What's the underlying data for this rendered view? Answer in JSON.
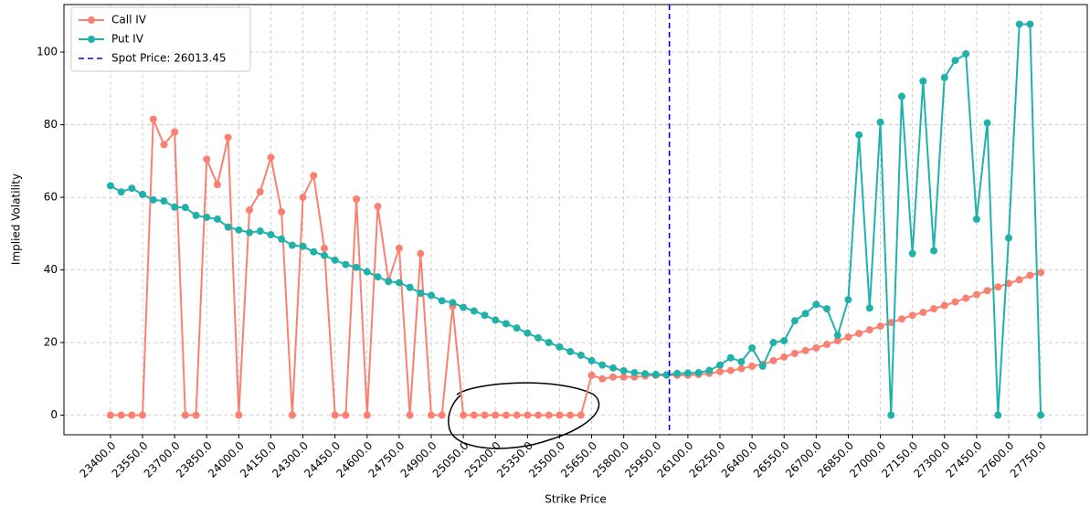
{
  "chart_data": {
    "type": "line",
    "x_label": "Strike Price",
    "y_label": "Implied Volatility",
    "x": [
      23400,
      23450,
      23500,
      23550,
      23600,
      23650,
      23700,
      23750,
      23800,
      23850,
      23900,
      23950,
      24000,
      24050,
      24100,
      24150,
      24200,
      24250,
      24300,
      24350,
      24400,
      24450,
      24500,
      24550,
      24600,
      24650,
      24700,
      24750,
      24800,
      24850,
      24900,
      24950,
      25000,
      25050,
      25100,
      25150,
      25200,
      25250,
      25300,
      25350,
      25400,
      25450,
      25500,
      25550,
      25600,
      25650,
      25700,
      25750,
      25800,
      25850,
      25900,
      25950,
      26000,
      26050,
      26100,
      26150,
      26200,
      26250,
      26300,
      26350,
      26400,
      26450,
      26500,
      26550,
      26600,
      26650,
      26700,
      26750,
      26800,
      26850,
      26900,
      26950,
      27000,
      27050,
      27100,
      27150,
      27200,
      27250,
      27300,
      27350,
      27400,
      27450,
      27500,
      27550,
      27600,
      27650,
      27700,
      27750
    ],
    "series": [
      {
        "name": "Call IV",
        "color": "#fa8072",
        "values": [
          0,
          0,
          0,
          0,
          81.5,
          74.5,
          78,
          0,
          0,
          70.5,
          63.5,
          76.5,
          0,
          56.5,
          61.5,
          71,
          56,
          0,
          60,
          66,
          46,
          0,
          0,
          59.5,
          0,
          57.5,
          37,
          46,
          0,
          44.5,
          0,
          0,
          30,
          0,
          0,
          0,
          0,
          0,
          0,
          0,
          0,
          0,
          0,
          0,
          0,
          11,
          10,
          10.5,
          10.5,
          10.5,
          10.8,
          11,
          11,
          11,
          11,
          11.2,
          11.5,
          12,
          12.3,
          12.8,
          13.5,
          14,
          15,
          16,
          17,
          17.8,
          18.5,
          19.5,
          20.5,
          21.5,
          22.5,
          23.5,
          24.5,
          25.5,
          26.5,
          27.5,
          28.3,
          29.3,
          30.2,
          31.2,
          32.2,
          33.2,
          34.3,
          35.3,
          36.3,
          37.3,
          38.5,
          39.3
        ]
      },
      {
        "name": "Put IV",
        "color": "#20b2aa",
        "values": [
          63.2,
          61.5,
          62.5,
          60.8,
          59.3,
          59,
          57.3,
          57.2,
          55,
          54.5,
          54,
          51.8,
          51,
          50.3,
          50.7,
          49.7,
          48.5,
          46.8,
          46.5,
          45,
          44,
          42.7,
          41.5,
          40.7,
          39.5,
          38.1,
          36.8,
          36.5,
          35.2,
          33.6,
          33,
          31.5,
          31,
          29.7,
          28.7,
          27.5,
          26.2,
          25.2,
          24,
          22.6,
          21.3,
          20,
          18.8,
          17.5,
          16.5,
          15,
          13.8,
          13,
          12.2,
          11.7,
          11.4,
          11.2,
          11.1,
          11.5,
          11.6,
          11.7,
          12.3,
          13.8,
          15.8,
          14.7,
          18.5,
          13.5,
          20,
          20.5,
          26,
          28,
          30.5,
          29.3,
          22,
          31.8,
          77.2,
          29.5,
          80.7,
          0,
          87.8,
          44.5,
          92,
          45.3,
          93,
          97.7,
          99.5,
          54,
          80.5,
          0,
          48.8,
          107.7,
          107.7,
          0
        ]
      }
    ],
    "spot": {
      "value": 26013.45,
      "label": "Spot Price: 26013.45",
      "color": "#0000ff"
    },
    "xlim": [
      23182.5,
      27967.5
    ],
    "ylim": [
      -5.4,
      113.1
    ],
    "xticks": [
      {
        "value": 23400,
        "label": "23400.0"
      },
      {
        "value": 23550,
        "label": "23550.0"
      },
      {
        "value": 23700,
        "label": "23700.0"
      },
      {
        "value": 23850,
        "label": "23850.0"
      },
      {
        "value": 24000,
        "label": "24000.0"
      },
      {
        "value": 24150,
        "label": "24150.0"
      },
      {
        "value": 24300,
        "label": "24300.0"
      },
      {
        "value": 24450,
        "label": "24450.0"
      },
      {
        "value": 24600,
        "label": "24600.0"
      },
      {
        "value": 24750,
        "label": "24750.0"
      },
      {
        "value": 24900,
        "label": "24900.0"
      },
      {
        "value": 25050,
        "label": "25050.0"
      },
      {
        "value": 25200,
        "label": "25200.0"
      },
      {
        "value": 25350,
        "label": "25350.0"
      },
      {
        "value": 25500,
        "label": "25500.0"
      },
      {
        "value": 25650,
        "label": "25650.0"
      },
      {
        "value": 25800,
        "label": "25800.0"
      },
      {
        "value": 25950,
        "label": "25950.0"
      },
      {
        "value": 26100,
        "label": "26100.0"
      },
      {
        "value": 26250,
        "label": "26250.0"
      },
      {
        "value": 26400,
        "label": "26400.0"
      },
      {
        "value": 26550,
        "label": "26550.0"
      },
      {
        "value": 26700,
        "label": "26700.0"
      },
      {
        "value": 26850,
        "label": "26850.0"
      },
      {
        "value": 27000,
        "label": "27000.0"
      },
      {
        "value": 27150,
        "label": "27150.0"
      },
      {
        "value": 27300,
        "label": "27300.0"
      },
      {
        "value": 27450,
        "label": "27450.0"
      },
      {
        "value": 27600,
        "label": "27600.0"
      },
      {
        "value": 27750,
        "label": "27750.0"
      }
    ],
    "yticks": [
      0,
      20,
      40,
      60,
      80,
      100
    ],
    "grid": true,
    "legend": "upper left"
  }
}
